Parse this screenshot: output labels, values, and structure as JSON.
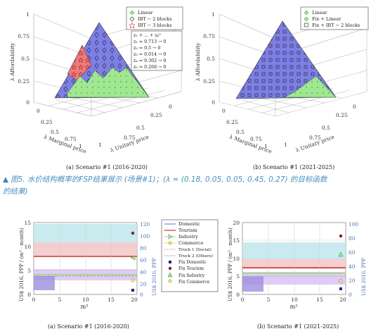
{
  "figure5": {
    "caption_marker": "▲",
    "caption_line1": "图5. 水价结构概率的FSP结果展示 (场景#1)；(λ = (0.18, 0.05, 0.05, 0.45, 0.27) 的目标函数",
    "caption_line2": "的结果)",
    "panel_a": {
      "caption": "(a)  Scenario #1 (2016-2020)",
      "legend": [
        "Linear",
        "IBT − 2 blocks",
        "IBT − 3 blocks"
      ],
      "annotation": [
        "z₁ + ... + z₆⁰",
        "z₁ = 0.713 → 0",
        "z₂ = 0.5 → 0",
        "z₃ = 0.014 → 0",
        "z₄ = 0.302 → 0",
        "z₅ = 0.268 → 0"
      ],
      "zlabel": "λ Affordability",
      "xlabel": "λ Marginal price",
      "ylabel": "λ Unitary price",
      "ticks_z": [
        "1",
        "0.75",
        "0.5",
        "0.25",
        "0"
      ],
      "ticks_x": [
        "0",
        "0.25",
        "0.5",
        "0.75",
        "1"
      ],
      "ticks_y": [
        "1",
        "0.75",
        "0.5",
        "0.25",
        "0"
      ]
    },
    "panel_b": {
      "caption": "(b)  Scenario #1 (2021-2025)",
      "legend": [
        "Linear",
        "Fix + Linear",
        "Fix + IBT − 2 blocks"
      ],
      "zlabel": "λ Affordability",
      "xlabel": "λ Marginal price",
      "ylabel": "λ Unitary price",
      "ticks_z": [
        "1",
        "0.75",
        "0.5",
        "0.25",
        "0"
      ],
      "ticks_x": [
        "0",
        "0.25",
        "0.5",
        "0.75",
        "1"
      ],
      "ticks_y": [
        "1",
        "0.75",
        "0.5",
        "0.25",
        "0"
      ]
    }
  },
  "figure6": {
    "legend": {
      "items": [
        "Domestic",
        "Tourism",
        "Industry",
        "Commerce",
        "Truck 1 (Social)",
        "Truck 2 (Others)",
        "Fix Domestic",
        "Fix Tourism",
        "Fix Industry",
        "Fix Commerce"
      ]
    },
    "panel_a": {
      "caption": "(a)  Scenario #1 (2016-2020)",
      "ylabel_left": "US$ 2016, PPP / (m³ · month)",
      "ylabel_right": "US$ 2016, PPP",
      "xlabel": "m³",
      "ticks_left": [
        "15",
        "10",
        "5",
        "0"
      ],
      "ticks_right": [
        "120",
        "100",
        "80",
        "60",
        "40",
        "20",
        "0"
      ],
      "ticks_x": [
        "0",
        "5",
        "10",
        "15",
        "20"
      ]
    },
    "panel_b": {
      "caption": "(b)  Scenario #1 (2021-2025)",
      "ylabel_left": "US$ 2016, PPP / (m³ · month)",
      "ylabel_right": "US$ 2016, PPP",
      "xlabel": "m³",
      "ticks_left": [
        "20",
        "15",
        "10",
        "5",
        "0"
      ],
      "ticks_right": [
        "100",
        "80",
        "60",
        "40",
        "20",
        "0"
      ],
      "ticks_x": [
        "0",
        "5",
        "10",
        "15",
        "20"
      ]
    }
  },
  "colors": {
    "blue_region": "#7d7ee6",
    "green_region": "#9fe88f",
    "red_region": "#e87c7c",
    "cyan_band": "#bfe8ec",
    "pink_band": "#f3c7c7",
    "purple_band": "#d9c3f3",
    "caption_blue": "#4a90c2"
  }
}
